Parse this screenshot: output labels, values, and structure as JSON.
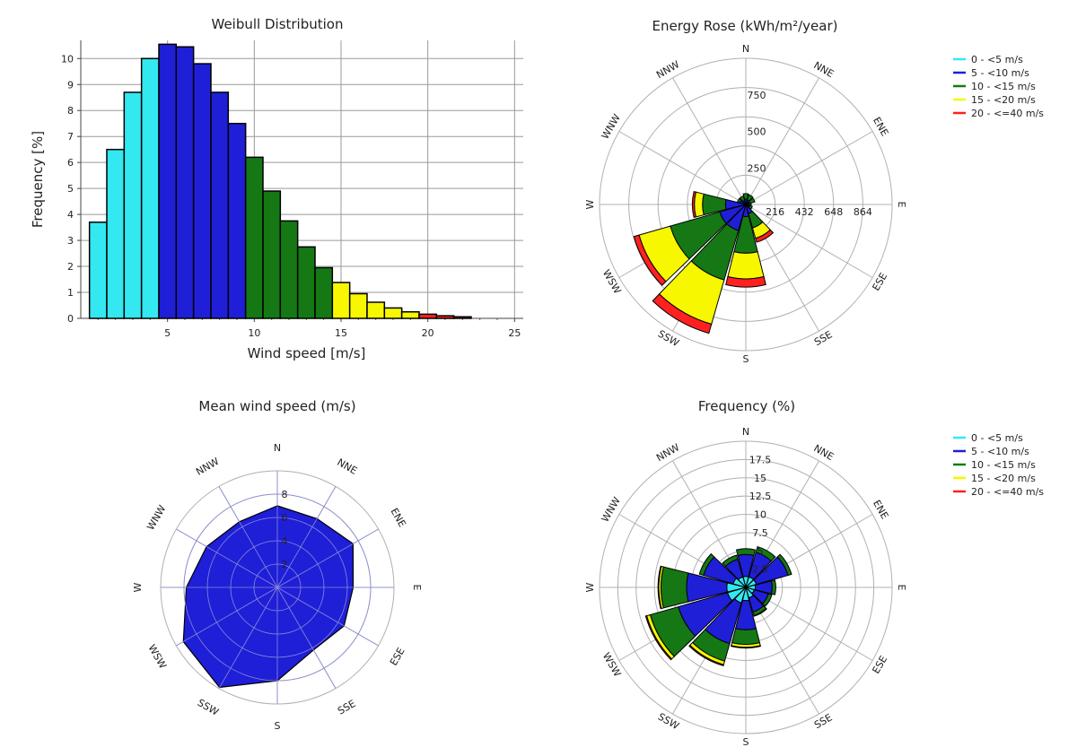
{
  "colors": {
    "bin_0_5": "#33e8f0",
    "bin_5_10": "#1f1fd8",
    "bin_10_15": "#157815",
    "bin_15_20": "#f7f700",
    "bin_20_40": "#ff2020",
    "grid": "#9a9a9a",
    "rose_grid": "#b0b0b0"
  },
  "legend": [
    {
      "label": "0 -  <5 m/s",
      "color": "#33e8f0"
    },
    {
      "label": "5 -  <10 m/s",
      "color": "#1f1fd8"
    },
    {
      "label": "10 -  <15 m/s",
      "color": "#157815"
    },
    {
      "label": "15 -  <20 m/s",
      "color": "#f7f700"
    },
    {
      "label": "20 -  <=40 m/s",
      "color": "#ff2020"
    }
  ],
  "directions": [
    "N",
    "NNE",
    "ENE",
    "E",
    "ESE",
    "SSE",
    "S",
    "SSW",
    "WSW",
    "W",
    "WNW",
    "NNW"
  ],
  "chart_data": [
    {
      "id": "weibull",
      "type": "bar",
      "title": "Weibull Distribution",
      "xlabel": "Wind speed [m/s]",
      "ylabel": "Frequency [%]",
      "xlim": [
        0,
        25.5
      ],
      "ylim": [
        0,
        10.7
      ],
      "xticks": [
        5,
        10,
        15,
        20,
        25
      ],
      "yticks": [
        0,
        1,
        2,
        3,
        4,
        5,
        6,
        7,
        8,
        9,
        10
      ],
      "grid": true,
      "bins": [
        {
          "x": 1,
          "value": 3.7,
          "cls": "bin_0_5"
        },
        {
          "x": 2,
          "value": 6.5,
          "cls": "bin_0_5"
        },
        {
          "x": 3,
          "value": 8.7,
          "cls": "bin_0_5"
        },
        {
          "x": 4,
          "value": 10.0,
          "cls": "bin_0_5"
        },
        {
          "x": 5,
          "value": 10.55,
          "cls": "bin_5_10"
        },
        {
          "x": 6,
          "value": 10.45,
          "cls": "bin_5_10"
        },
        {
          "x": 7,
          "value": 9.8,
          "cls": "bin_5_10"
        },
        {
          "x": 8,
          "value": 8.7,
          "cls": "bin_5_10"
        },
        {
          "x": 9,
          "value": 7.5,
          "cls": "bin_5_10"
        },
        {
          "x": 10,
          "value": 6.2,
          "cls": "bin_10_15"
        },
        {
          "x": 11,
          "value": 4.9,
          "cls": "bin_10_15"
        },
        {
          "x": 12,
          "value": 3.75,
          "cls": "bin_10_15"
        },
        {
          "x": 13,
          "value": 2.75,
          "cls": "bin_10_15"
        },
        {
          "x": 14,
          "value": 1.95,
          "cls": "bin_10_15"
        },
        {
          "x": 15,
          "value": 1.38,
          "cls": "bin_15_20"
        },
        {
          "x": 16,
          "value": 0.95,
          "cls": "bin_15_20"
        },
        {
          "x": 17,
          "value": 0.62,
          "cls": "bin_15_20"
        },
        {
          "x": 18,
          "value": 0.4,
          "cls": "bin_15_20"
        },
        {
          "x": 19,
          "value": 0.25,
          "cls": "bin_15_20"
        },
        {
          "x": 20,
          "value": 0.16,
          "cls": "bin_20_40"
        },
        {
          "x": 21,
          "value": 0.1,
          "cls": "bin_20_40"
        },
        {
          "x": 22,
          "value": 0.06,
          "cls": "bin_20_40"
        }
      ]
    },
    {
      "id": "energy",
      "type": "stacked-rose",
      "title": "Energy Rose (kWh/m²/year)",
      "rmax": 1080,
      "radial_ticks": [
        216,
        432,
        648,
        864
      ],
      "radial_tick_labels": [
        "216",
        "432",
        "648",
        "864"
      ],
      "vertical_labels": [
        "250",
        "500",
        "750"
      ],
      "series": [
        {
          "name": "0 -  <5 m/s",
          "values": [
            0,
            0,
            0,
            0,
            0,
            0,
            0,
            0,
            0,
            0,
            0,
            0
          ]
        },
        {
          "name": "5 -  <10 m/s",
          "values": [
            40,
            35,
            30,
            25,
            30,
            70,
            90,
            200,
            200,
            150,
            45,
            30
          ]
        },
        {
          "name": "10 -  <15 m/s",
          "values": [
            40,
            40,
            40,
            15,
            20,
            110,
            270,
            380,
            380,
            170,
            20,
            35
          ]
        },
        {
          "name": "15 -  <20 m/s",
          "values": [
            0,
            0,
            0,
            0,
            0,
            80,
            190,
            340,
            240,
            60,
            0,
            0
          ]
        },
        {
          "name": "20 -  <=40 m/s",
          "values": [
            0,
            0,
            0,
            0,
            0,
            30,
            60,
            70,
            40,
            15,
            0,
            0
          ]
        }
      ]
    },
    {
      "id": "mean",
      "type": "radar",
      "title": "Mean wind speed (m/s)",
      "rmax": 10,
      "rings": [
        2,
        4,
        6,
        8
      ],
      "ring_labels": [
        "2",
        "4",
        "6",
        "8"
      ],
      "values": [
        7.0,
        6.8,
        7.5,
        6.5,
        6.6,
        6.2,
        8.0,
        9.9,
        9.3,
        7.8,
        7.0,
        6.5
      ]
    },
    {
      "id": "frequency",
      "type": "stacked-rose",
      "title": "Frequency  (%)",
      "rmax": 20,
      "rings": [
        2.5,
        5,
        7.5,
        10,
        12.5,
        15,
        17.5
      ],
      "ring_labels": [
        "2.5",
        "5",
        "7.5",
        "10",
        "12.5",
        "15",
        "17.5"
      ],
      "series": [
        {
          "name": "0 -  <5 m/s",
          "values": [
            1.5,
            1.5,
            1.5,
            1.3,
            1.2,
            1.5,
            1.8,
            2.2,
            2.6,
            2.6,
            1.8,
            1.5
          ]
        },
        {
          "name": "5 -  <10 m/s",
          "values": [
            3.0,
            3.5,
            4.5,
            2.3,
            2.0,
            2.0,
            4.0,
            5.8,
            7.0,
            5.5,
            4.2,
            2.5
          ]
        },
        {
          "name": "10 -  <15 m/s",
          "values": [
            0.8,
            0.8,
            0.5,
            0.5,
            0.5,
            0.5,
            2.0,
            2.5,
            4.0,
            3.5,
            0.6,
            0.6
          ]
        },
        {
          "name": "15 -  <20 m/s",
          "values": [
            0,
            0,
            0,
            0,
            0,
            0.1,
            0.4,
            0.5,
            0.5,
            0.3,
            0,
            0
          ]
        },
        {
          "name": "20 -  <=40 m/s",
          "values": [
            0,
            0,
            0,
            0,
            0,
            0,
            0.1,
            0.15,
            0.15,
            0.1,
            0,
            0
          ]
        }
      ]
    }
  ]
}
